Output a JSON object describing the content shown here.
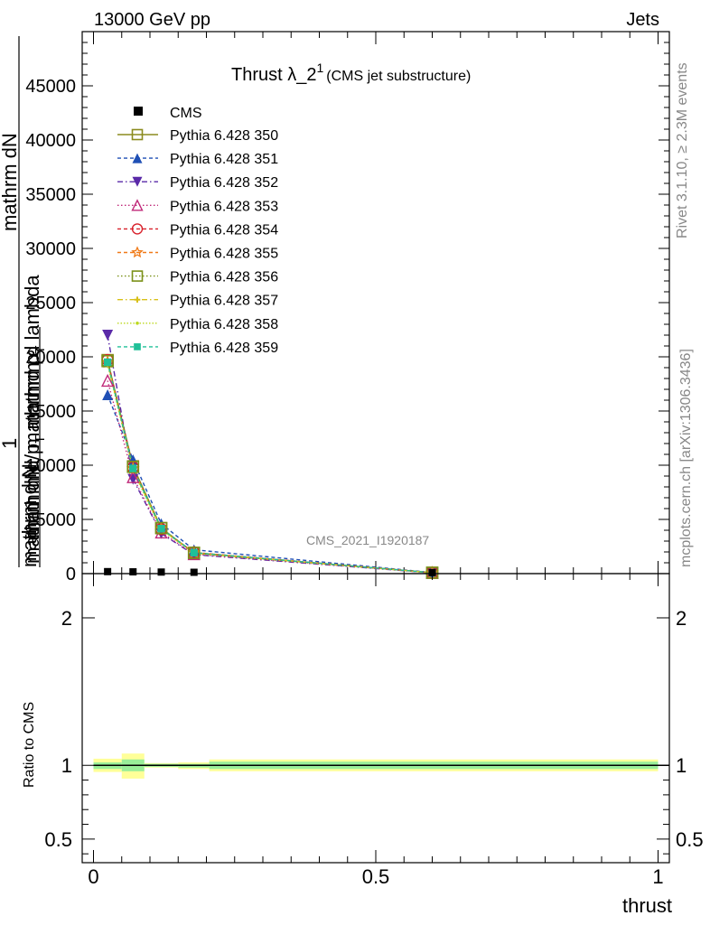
{
  "header": {
    "left": "13000 GeV pp",
    "right": "Jets"
  },
  "title": {
    "main": "Thrust λ_2",
    "sup": "1",
    "sub": "(CMS jet substructure)"
  },
  "side_labels": {
    "rivet": "Rivet 3.1.10, ≥ 2.3M events",
    "mcplots": "mcplots.cern.ch [arXiv:1306.3436]"
  },
  "watermark": "CMS_2021_I1920187",
  "ylabel": {
    "one": "1",
    "num_a": "mathrm dN",
    "num_b": "mathrmd p",
    "num_b_sub": "T",
    "num_b_tail": " mathrm d lambda",
    "den_a": "mathrm dN / mathrmd p",
    "den_a_sub": "T",
    "den_b": "mathrm d N"
  },
  "ratio_ylabel": "Ratio to CMS",
  "xlabel": "thrust",
  "chart_data": {
    "type": "line",
    "main": {
      "ylim": [
        0,
        50000
      ],
      "xlim": [
        -0.02,
        1.02
      ],
      "yticks": [
        0,
        5000,
        10000,
        15000,
        20000,
        25000,
        30000,
        35000,
        40000,
        45000
      ],
      "yticklabels": [
        "0",
        "5000",
        "10000",
        "15000",
        "20000",
        "25000",
        "30000",
        "35000",
        "40000",
        "45000"
      ]
    },
    "ratio": {
      "ylim": [
        0.34,
        2.3
      ],
      "yticks": [
        0.5,
        1,
        2
      ],
      "yticklabels": [
        "0.5",
        "1",
        "2"
      ]
    },
    "xticks": [
      0,
      0.5,
      1
    ],
    "xticklabels": [
      "0",
      "0.5",
      "1"
    ],
    "x": [
      0.025,
      0.07,
      0.12,
      0.178,
      0.6
    ],
    "cms": [
      100,
      80,
      60,
      40,
      10
    ],
    "series": [
      {
        "name": "Pythia 6.428 350",
        "values": [
          19700,
          9900,
          4200,
          1900,
          80
        ],
        "color": "#8b8b1e",
        "marker": "square-open",
        "dash": ""
      },
      {
        "name": "Pythia 6.428 351",
        "values": [
          16500,
          10500,
          4600,
          2200,
          100
        ],
        "color": "#1f4fb5",
        "marker": "triangle-up",
        "dash": "4,3"
      },
      {
        "name": "Pythia 6.428 352",
        "values": [
          22000,
          8700,
          3700,
          1750,
          70
        ],
        "color": "#5a2aa8",
        "marker": "triangle-down",
        "dash": "6,3,1.5,3"
      },
      {
        "name": "Pythia 6.428 353",
        "values": [
          17800,
          8900,
          3800,
          1800,
          75
        ],
        "color": "#c02a7a",
        "marker": "triangle-open",
        "dash": "1.5,2.5"
      },
      {
        "name": "Pythia 6.428 354",
        "values": [
          19700,
          9800,
          4100,
          1950,
          80
        ],
        "color": "#d8202a",
        "marker": "circle-open",
        "dash": "4,3"
      },
      {
        "name": "Pythia 6.428 355",
        "values": [
          19500,
          9700,
          4150,
          1950,
          80
        ],
        "color": "#f07a18",
        "marker": "star-open",
        "dash": "4,3"
      },
      {
        "name": "Pythia 6.428 356",
        "values": [
          19600,
          9850,
          4200,
          1920,
          80
        ],
        "color": "#7a9018",
        "marker": "square-open",
        "dash": "1.5,2.5"
      },
      {
        "name": "Pythia 6.428 357",
        "values": [
          19400,
          9600,
          4100,
          1900,
          80
        ],
        "color": "#d8c018",
        "marker": "cross-small",
        "dash": "6,3,1.5,3"
      },
      {
        "name": "Pythia 6.428 358",
        "values": [
          19300,
          9500,
          4050,
          1880,
          80
        ],
        "color": "#bcd81e",
        "marker": "dot",
        "dash": "1.5,2"
      },
      {
        "name": "Pythia 6.428 359",
        "values": [
          19500,
          9700,
          4150,
          1930,
          80
        ],
        "color": "#20c098",
        "marker": "square-filled",
        "dash": "4,3"
      }
    ],
    "ratio_bands": [
      {
        "x0": 0.0,
        "x1": 0.05,
        "yellow": [
          0.955,
          1.045
        ],
        "green": [
          0.975,
          1.02
        ]
      },
      {
        "x0": 0.05,
        "x1": 0.09,
        "yellow": [
          0.91,
          1.08
        ],
        "green": [
          0.96,
          1.04
        ]
      },
      {
        "x0": 0.09,
        "x1": 0.15,
        "yellow": [
          0.985,
          1.015
        ],
        "green": [
          0.99,
          1.01
        ]
      },
      {
        "x0": 0.15,
        "x1": 0.205,
        "yellow": [
          0.975,
          1.02
        ],
        "green": [
          0.985,
          1.01
        ]
      },
      {
        "x0": 0.205,
        "x1": 1.0,
        "yellow": [
          0.96,
          1.04
        ],
        "green": [
          0.975,
          1.025
        ]
      }
    ]
  }
}
